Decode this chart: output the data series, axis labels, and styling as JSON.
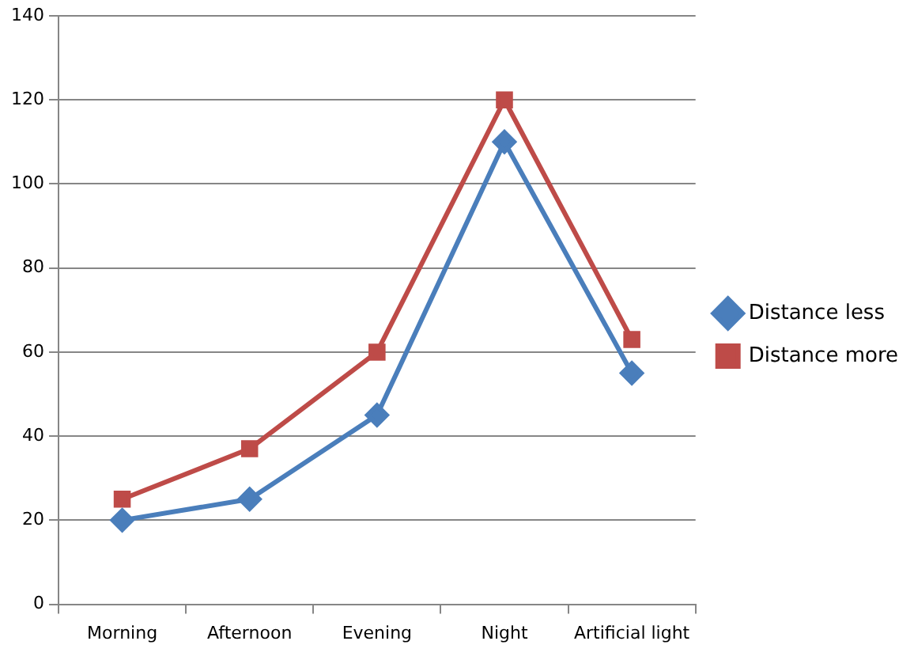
{
  "chart_data": {
    "type": "line",
    "categories": [
      "Morning",
      "Afternoon",
      "Evening",
      "Night",
      "Artificial light"
    ],
    "series": [
      {
        "name": "Distance less",
        "color": "#4a7ebb",
        "marker": "diamond",
        "values": [
          20,
          25,
          45,
          110,
          55
        ]
      },
      {
        "name": "Distance more",
        "color": "#be4b48",
        "marker": "square",
        "values": [
          25,
          37,
          60,
          120,
          63
        ]
      }
    ],
    "ylim": [
      0,
      140
    ],
    "yticks": [
      0,
      20,
      40,
      60,
      80,
      100,
      120,
      140
    ],
    "grid": "y",
    "legend": "right",
    "line_style": "solid"
  }
}
